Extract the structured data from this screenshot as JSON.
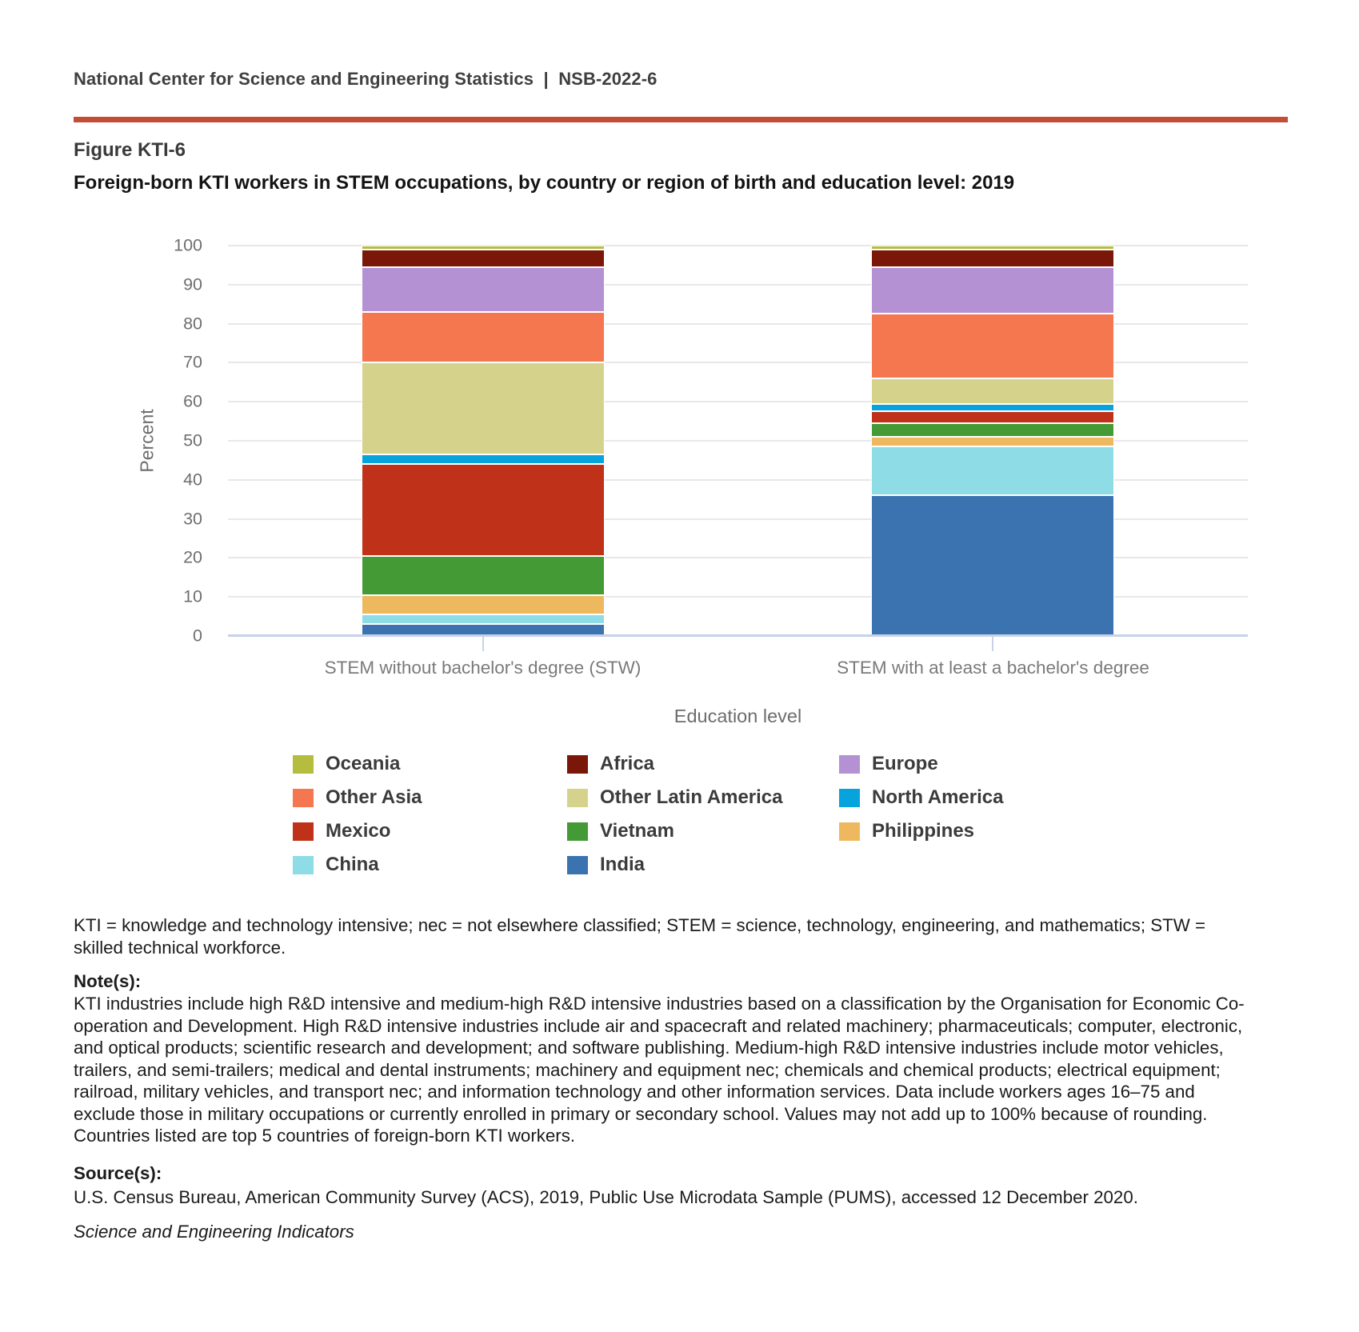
{
  "header": {
    "text": "National Center for Science and Engineering Statistics  |  NSB-2022-6"
  },
  "figure": {
    "label": "Figure KTI-6",
    "title": "Foreign-born KTI workers in STEM occupations, by country or region of birth and education level: 2019"
  },
  "chart_data": {
    "type": "bar",
    "stacked": true,
    "title": "Foreign-born KTI workers in STEM occupations, by country or region of birth and education level: 2019",
    "xlabel": "Education level",
    "ylabel": "Percent",
    "ylim": [
      0,
      100
    ],
    "yticks": [
      0,
      10,
      20,
      30,
      40,
      50,
      60,
      70,
      80,
      90,
      100
    ],
    "grid": true,
    "legend_position": "bottom",
    "categories": [
      "STEM without bachelor's degree (STW)",
      "STEM with at least a bachelor's degree"
    ],
    "series": [
      {
        "name": "India",
        "color": "#3b73b1",
        "values": [
          3,
          36
        ]
      },
      {
        "name": "China",
        "color": "#8edce6",
        "values": [
          2.5,
          12.5
        ]
      },
      {
        "name": "Philippines",
        "color": "#eeb95e",
        "values": [
          5,
          2.5
        ]
      },
      {
        "name": "Vietnam",
        "color": "#449a35",
        "values": [
          10,
          3.5
        ]
      },
      {
        "name": "Mexico",
        "color": "#bf3119",
        "values": [
          23.5,
          3
        ]
      },
      {
        "name": "North America",
        "color": "#06a3dc",
        "values": [
          2.5,
          2
        ]
      },
      {
        "name": "Other Latin America",
        "color": "#d5d38b",
        "values": [
          23.5,
          6.5
        ]
      },
      {
        "name": "Other Asia",
        "color": "#f4774f",
        "values": [
          13,
          16.5
        ]
      },
      {
        "name": "Europe",
        "color": "#b491d3",
        "values": [
          11.5,
          12
        ]
      },
      {
        "name": "Africa",
        "color": "#7a1708",
        "values": [
          4.5,
          4.5
        ]
      },
      {
        "name": "Oceania",
        "color": "#b5bd3e",
        "values": [
          1,
          1
        ]
      }
    ]
  },
  "legend": {
    "items": [
      {
        "label": "Oceania",
        "color": "#b5bd3e"
      },
      {
        "label": "Africa",
        "color": "#7a1708"
      },
      {
        "label": "Europe",
        "color": "#b491d3"
      },
      {
        "label": "Other Asia",
        "color": "#f4774f"
      },
      {
        "label": "Other Latin America",
        "color": "#d5d38b"
      },
      {
        "label": "North America",
        "color": "#06a3dc"
      },
      {
        "label": "Mexico",
        "color": "#bf3119"
      },
      {
        "label": "Vietnam",
        "color": "#449a35"
      },
      {
        "label": "Philippines",
        "color": "#eeb95e"
      },
      {
        "label": "China",
        "color": "#8edce6"
      },
      {
        "label": "India",
        "color": "#3b73b1"
      }
    ]
  },
  "notes": {
    "abbreviations": "KTI = knowledge and technology intensive; nec = not elsewhere classified; STEM = science, technology, engineering, and mathematics; STW = skilled technical workforce.",
    "notes_label": "Note(s):",
    "notes_text": "KTI industries include high R&D intensive and medium-high R&D intensive industries based on a classification by the Organisation for Economic Co-operation and Development. High R&D intensive industries include air and spacecraft and related machinery; pharmaceuticals; computer, electronic, and optical products; scientific research and development; and software publishing. Medium-high R&D intensive industries include motor vehicles, trailers, and semi-trailers; medical and dental instruments; machinery and equipment nec; chemicals and chemical products; electrical equipment; railroad, military vehicles, and transport nec; and information technology and other information services. Data include workers ages 16–75 and exclude those in military occupations or currently enrolled in primary or secondary school. Values may not add up to 100% because of rounding. Countries listed are top 5 countries of foreign-born KTI workers.",
    "source_label": "Source(s):",
    "source_text": "U.S. Census Bureau, American Community Survey (ACS), 2019, Public Use Microdata Sample (PUMS), accessed 12 December 2020.",
    "footer_italic": "Science and Engineering Indicators"
  }
}
